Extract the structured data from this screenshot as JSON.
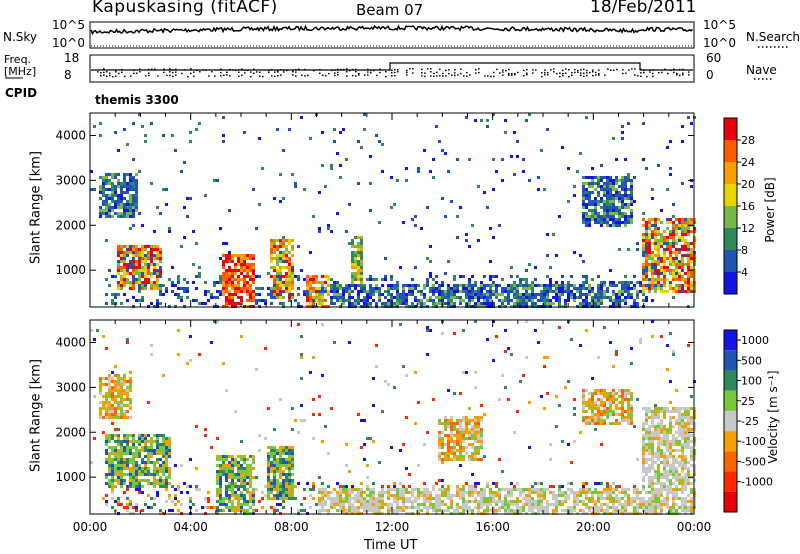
{
  "header": {
    "station": "Kapuskasing (fitACF)",
    "beam": "Beam 07",
    "date": "18/Feb/2011"
  },
  "top_panel": {
    "nsky_label": "N.Sky",
    "nsearch_label": "N.Search",
    "freq_label_1": "Freq.",
    "freq_label_2": "[MHz]",
    "nave_label": "Nave",
    "cpid_label": "CPID",
    "cpid_name": "themis 3300",
    "noise_ticks_left": [
      "10^5",
      "10^0"
    ],
    "noise_ticks_right": [
      "10^5",
      "10^0"
    ],
    "freq_ticks": [
      "18",
      "8"
    ],
    "nave_ticks": [
      "60",
      "0"
    ]
  },
  "chart_data": [
    {
      "type": "heatmap",
      "name": "power",
      "ylabel": "Slant Range [km]",
      "xlabel": "",
      "ylim": [
        180,
        4500
      ],
      "yticks": [
        1000,
        2000,
        3000,
        4000
      ],
      "xlim": [
        0,
        24
      ],
      "colorbar": {
        "label": "Power [dB]",
        "ticks": [
          "28",
          "24",
          "20",
          "16",
          "12",
          "8",
          "4"
        ],
        "colors": [
          "#e8000b",
          "#ff5a00",
          "#f5a000",
          "#e6d400",
          "#78b84a",
          "#2e8a5a",
          "#1f55b4",
          "#1414e6"
        ]
      },
      "features": [
        {
          "t": [
            0.3,
            1.9
          ],
          "r": [
            2200,
            3200
          ],
          "level": "low"
        },
        {
          "t": [
            1.0,
            2.8
          ],
          "r": [
            600,
            1600
          ],
          "level": "high"
        },
        {
          "t": [
            5.2,
            6.5
          ],
          "r": [
            200,
            1400
          ],
          "level": "max"
        },
        {
          "t": [
            7.1,
            8.0
          ],
          "r": [
            400,
            1700
          ],
          "level": "high"
        },
        {
          "t": [
            8.5,
            9.5
          ],
          "r": [
            200,
            900
          ],
          "level": "high"
        },
        {
          "t": [
            10.3,
            10.8
          ],
          "r": [
            700,
            1800
          ],
          "level": "mid"
        },
        {
          "t": [
            9.5,
            21.8
          ],
          "r": [
            200,
            700
          ],
          "level": "low"
        },
        {
          "t": [
            19.5,
            21.5
          ],
          "r": [
            2000,
            3100
          ],
          "level": "low"
        },
        {
          "t": [
            21.9,
            24.0
          ],
          "r": [
            500,
            2200
          ],
          "level": "high"
        }
      ]
    },
    {
      "type": "heatmap",
      "name": "velocity",
      "ylabel": "Slant Range [km]",
      "xlabel": "Time UT",
      "ylim": [
        180,
        4500
      ],
      "yticks": [
        1000,
        2000,
        3000,
        4000
      ],
      "xlim": [
        0,
        24
      ],
      "xticks": [
        "00:00",
        "04:00",
        "08:00",
        "12:00",
        "16:00",
        "20:00",
        "00:00"
      ],
      "colorbar": {
        "label": "Velocity [m s⁻¹]",
        "ticks": [
          "1000",
          "500",
          "100",
          "25",
          "-25",
          "-100",
          "-500",
          "-1000"
        ],
        "colors": [
          "#1414e6",
          "#1f55b4",
          "#2e8a5a",
          "#78c83c",
          "#c8c8c8",
          "#f5a000",
          "#ff6400",
          "#ff2800",
          "#e8000b"
        ]
      },
      "features": [
        {
          "t": [
            0.3,
            1.6
          ],
          "r": [
            2300,
            3300
          ],
          "level": "neg"
        },
        {
          "t": [
            0.5,
            3.2
          ],
          "r": [
            800,
            2000
          ],
          "level": "pos"
        },
        {
          "t": [
            5.0,
            6.5
          ],
          "r": [
            200,
            1500
          ],
          "level": "pos"
        },
        {
          "t": [
            7.0,
            8.0
          ],
          "r": [
            500,
            1700
          ],
          "level": "pos"
        },
        {
          "t": [
            13.8,
            15.5
          ],
          "r": [
            1400,
            2400
          ],
          "level": "neg"
        },
        {
          "t": [
            19.5,
            21.5
          ],
          "r": [
            2200,
            3000
          ],
          "level": "neg"
        },
        {
          "t": [
            21.9,
            24.0
          ],
          "r": [
            200,
            2600
          ],
          "level": "zero"
        },
        {
          "t": [
            9.0,
            22.0
          ],
          "r": [
            200,
            800
          ],
          "level": "zero"
        }
      ]
    }
  ]
}
